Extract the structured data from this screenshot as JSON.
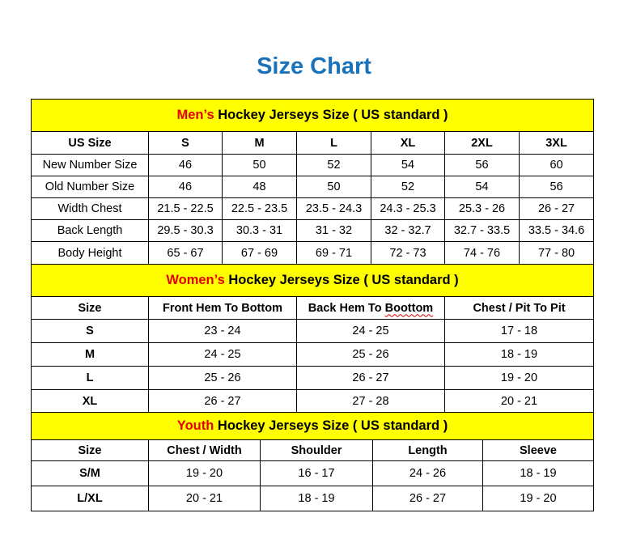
{
  "title": "Size Chart",
  "colors": {
    "title": "#1a72bb",
    "header_bg": "#ffff00",
    "highlight": "#e60000"
  },
  "men": {
    "header_highlight": "Men’s",
    "header_rest": " Hockey Jerseys Size ( US standard )",
    "columns": [
      "US Size",
      "S",
      "M",
      "L",
      "XL",
      "2XL",
      "3XL"
    ],
    "rows": [
      [
        "New Number Size",
        "46",
        "50",
        "52",
        "54",
        "56",
        "60"
      ],
      [
        "Old Number Size",
        "46",
        "48",
        "50",
        "52",
        "54",
        "56"
      ],
      [
        "Width Chest",
        "21.5 - 22.5",
        "22.5 - 23.5",
        "23.5 - 24.3",
        "24.3 - 25.3",
        "25.3 - 26",
        "26 - 27"
      ],
      [
        "Back Length",
        "29.5 - 30.3",
        "30.3 - 31",
        "31 - 32",
        "32 - 32.7",
        "32.7 - 33.5",
        "33.5 - 34.6"
      ],
      [
        "Body Height",
        "65 - 67",
        "67 - 69",
        "69 - 71",
        "72 - 73",
        "74 - 76",
        "77 - 80"
      ]
    ]
  },
  "women": {
    "header_highlight": "Women’s",
    "header_rest": " Hockey Jerseys Size ( US standard )",
    "columns": [
      "Size",
      "Front Hem To Bottom",
      "Back Hem To Boottom",
      "Chest / Pit To Pit"
    ],
    "rows": [
      [
        "S",
        "23 - 24",
        "24 - 25",
        "17 - 18"
      ],
      [
        "M",
        "24 - 25",
        "25 - 26",
        "18 - 19"
      ],
      [
        "L",
        "25 - 26",
        "26 - 27",
        "19 - 20"
      ],
      [
        "XL",
        "26 - 27",
        "27 - 28",
        "20 - 21"
      ]
    ]
  },
  "youth": {
    "header_highlight": "Youth",
    "header_rest": " Hockey Jerseys Size ( US standard )",
    "columns": [
      "Size",
      "Chest / Width",
      "Shoulder",
      "Length",
      "Sleeve"
    ],
    "rows": [
      [
        "S/M",
        "19 - 20",
        "16 - 17",
        "24 - 26",
        "18 - 19"
      ],
      [
        "L/XL",
        "20 - 21",
        "18 - 19",
        "26 - 27",
        "19 - 20"
      ]
    ]
  }
}
